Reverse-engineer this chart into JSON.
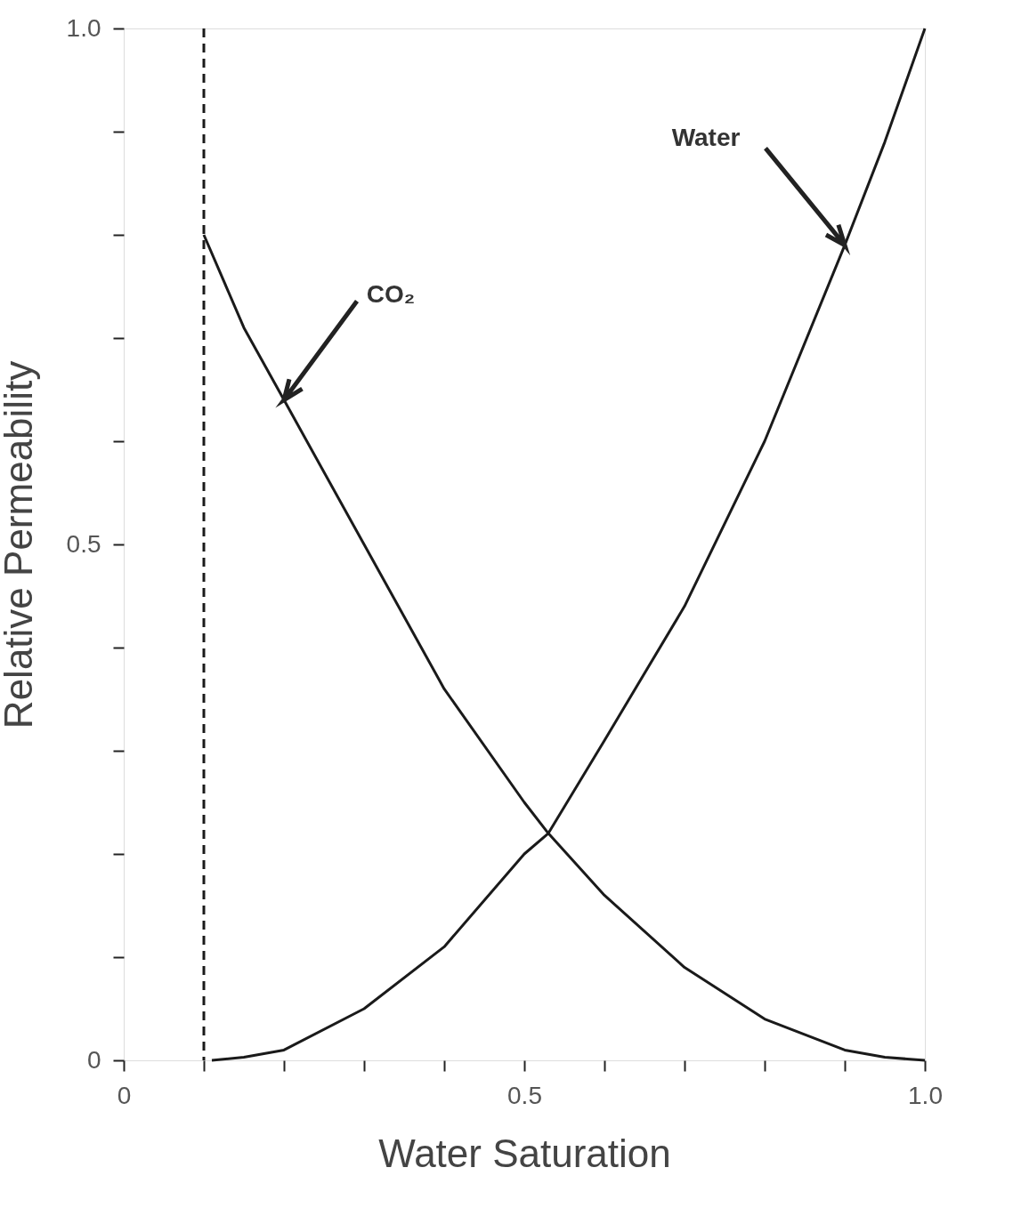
{
  "chart_data": {
    "type": "line",
    "xlabel": "Water Saturation",
    "ylabel": "Relative Permeability",
    "xlim": [
      0,
      1
    ],
    "ylim": [
      0,
      1
    ],
    "xticks": [
      {
        "value": 0,
        "label": "0"
      },
      {
        "value": 0.1,
        "label": null
      },
      {
        "value": 0.2,
        "label": null
      },
      {
        "value": 0.3,
        "label": null
      },
      {
        "value": 0.4,
        "label": null
      },
      0.5,
      {
        "value": 0.6,
        "label": null
      },
      {
        "value": 0.7,
        "label": null
      },
      {
        "value": 0.8,
        "label": null
      },
      {
        "value": 0.9,
        "label": null
      },
      {
        "value": 1,
        "label": "1.0"
      }
    ],
    "yticks": [
      {
        "value": 0,
        "label": "0"
      },
      {
        "value": 0.1,
        "label": null
      },
      {
        "value": 0.2,
        "label": null
      },
      {
        "value": 0.3,
        "label": null
      },
      {
        "value": 0.4,
        "label": null
      },
      0.5,
      {
        "value": 0.6,
        "label": null
      },
      {
        "value": 0.7,
        "label": null
      },
      {
        "value": 0.8,
        "label": null
      },
      {
        "value": 0.9,
        "label": null
      },
      {
        "value": 1,
        "label": "1.0"
      }
    ],
    "grid": false,
    "marker": "none",
    "line_style": "solid",
    "series": [
      {
        "color": "#1a1a1a",
        "x": [
          0.1,
          0.15,
          0.2,
          0.3,
          0.4,
          0.5,
          0.53,
          0.6,
          0.7,
          0.8,
          0.9,
          0.95,
          1.0
        ],
        "values": [
          0.8,
          0.71,
          0.64,
          0.5,
          0.36,
          0.25,
          0.22,
          0.16,
          0.09,
          0.04,
          0.01,
          0.003,
          0
        ]
      },
      {
        "color": "#1a1a1a",
        "x": [
          0.11,
          0.15,
          0.2,
          0.3,
          0.4,
          0.5,
          0.53,
          0.6,
          0.7,
          0.8,
          0.9,
          0.95,
          1.0
        ],
        "values": [
          0,
          0.003,
          0.01,
          0.05,
          0.11,
          0.2,
          0.22,
          0.31,
          0.44,
          0.6,
          0.79,
          0.89,
          1.0
        ]
      }
    ],
    "ref_lines": [
      {
        "axis": "x",
        "value": 0.1,
        "label": null,
        "color": "#1a1a1a",
        "line_style": "dashed"
      }
    ],
    "annotations": [
      {
        "text": "CO₂",
        "x": 0.2,
        "y": 0.64
      },
      {
        "text": "Water",
        "x": 0.9,
        "y": 0.79
      }
    ]
  }
}
